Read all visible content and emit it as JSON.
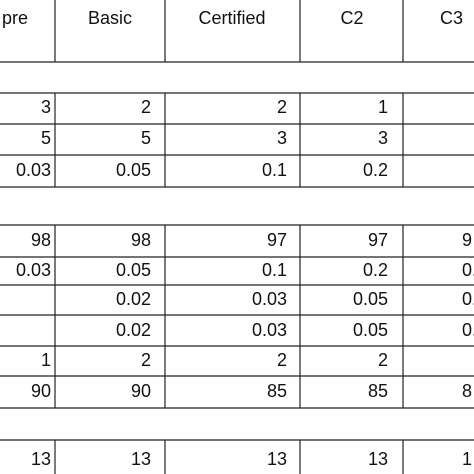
{
  "table": {
    "header": [
      "pre",
      "Basic",
      "Certified",
      "C2",
      "C3"
    ],
    "rows": [
      [
        "3",
        "2",
        "2",
        "1",
        null
      ],
      [
        "5",
        "5",
        "3",
        "3",
        null
      ],
      [
        "0.03",
        "0.05",
        "0.1",
        "0.2",
        null
      ],
      [
        "98",
        "98",
        "97",
        "97",
        "9"
      ],
      [
        "0.03",
        "0.05",
        "0.1",
        "0.2",
        "0."
      ],
      [
        null,
        "0.02",
        "0.03",
        "0.05",
        "0."
      ],
      [
        null,
        "0.02",
        "0.03",
        "0.05",
        "0."
      ],
      [
        "1",
        "2",
        "2",
        "2",
        null
      ],
      [
        "90",
        "90",
        "85",
        "85",
        "8"
      ],
      [
        "13",
        "13",
        "13",
        "13",
        "1"
      ]
    ]
  }
}
